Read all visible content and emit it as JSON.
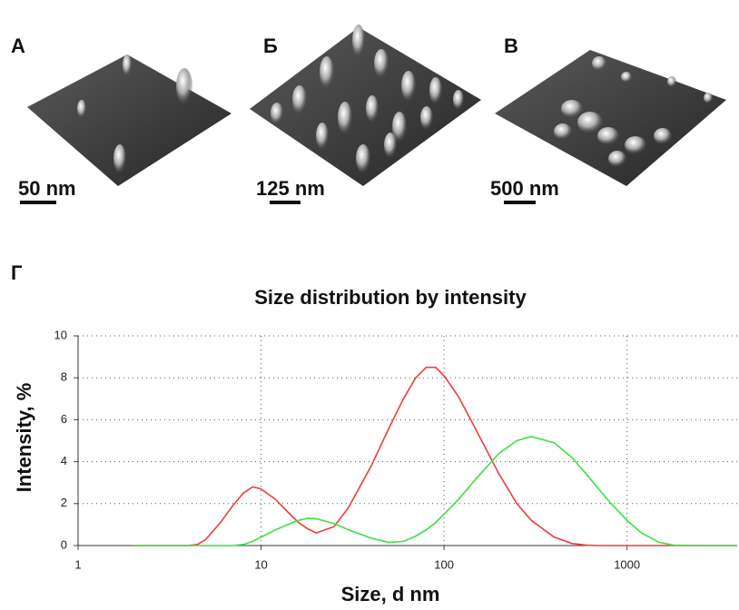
{
  "panels": [
    {
      "label": "А",
      "scale": "50 nm"
    },
    {
      "label": "Б",
      "scale": "125 nm"
    },
    {
      "label": "В",
      "scale": "500 nm"
    }
  ],
  "chart_label": "Г",
  "chart_data": {
    "type": "line",
    "title": "Size distribution by intensity",
    "x_label": "Size, d nm",
    "y_label": "Intensity, %",
    "x": [
      2,
      3,
      4,
      4.5,
      5,
      6,
      7,
      8,
      9,
      10,
      12,
      14,
      16,
      18,
      20,
      25,
      30,
      40,
      50,
      60,
      70,
      80,
      90,
      100,
      120,
      150,
      200,
      250,
      300,
      400,
      500,
      600,
      700,
      800,
      1000,
      1200,
      1500,
      1800,
      2500,
      4000
    ],
    "series": [
      {
        "color": "#f03c3c",
        "values": [
          0,
          0,
          0,
          0.05,
          0.3,
          1.1,
          1.9,
          2.5,
          2.8,
          2.7,
          2.2,
          1.6,
          1.1,
          0.8,
          0.6,
          0.9,
          1.8,
          3.8,
          5.6,
          7.0,
          8.0,
          8.5,
          8.5,
          8.1,
          7.1,
          5.5,
          3.4,
          2.0,
          1.2,
          0.4,
          0.1,
          0.02,
          0,
          0,
          0,
          0,
          0,
          0,
          0,
          0
        ]
      },
      {
        "color": "#3ee03e",
        "values": [
          0,
          0,
          0,
          0,
          0,
          0,
          0,
          0.05,
          0.2,
          0.4,
          0.75,
          1.0,
          1.2,
          1.3,
          1.28,
          1.05,
          0.75,
          0.35,
          0.15,
          0.2,
          0.45,
          0.75,
          1.1,
          1.5,
          2.2,
          3.2,
          4.4,
          5.0,
          5.2,
          4.9,
          4.2,
          3.4,
          2.7,
          2.1,
          1.2,
          0.6,
          0.15,
          0.02,
          0,
          0
        ]
      }
    ],
    "xlog": true,
    "xlim": [
      1,
      4000
    ],
    "xticks": [
      1,
      10,
      100,
      1000
    ],
    "ylim": [
      0,
      10
    ],
    "yticks": [
      0,
      2,
      4,
      6,
      8,
      10
    ],
    "grid": true
  }
}
